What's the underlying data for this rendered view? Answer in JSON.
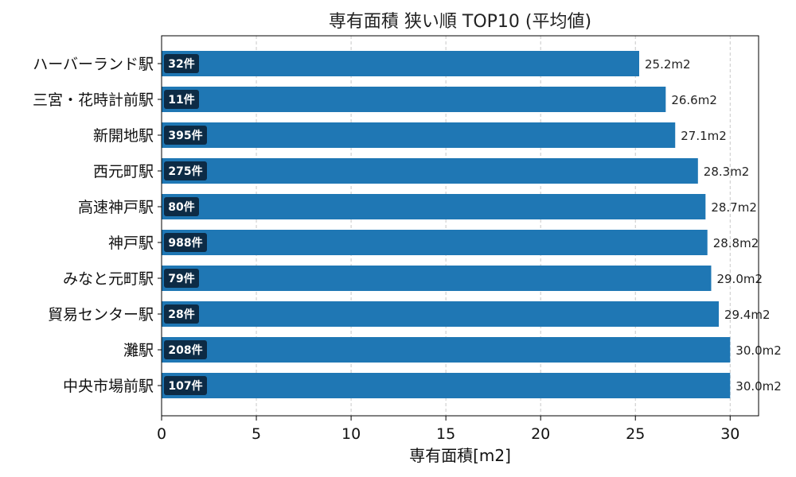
{
  "chart_data": {
    "type": "bar",
    "orientation": "horizontal",
    "title": "専有面積 狭い順 TOP10 (平均値)",
    "xlabel": "専有面積[m2]",
    "ylabel": "",
    "xlim": [
      0,
      31.5
    ],
    "xticks": [
      0,
      5,
      10,
      15,
      20,
      25,
      30
    ],
    "grid": "x-dashed",
    "bar_color": "#1f77b4",
    "badge_color": "#0d2b45",
    "value_unit": "m2",
    "categories": [
      "ハーバーランド駅",
      "三宮・花時計前駅",
      "新開地駅",
      "西元町駅",
      "高速神戸駅",
      "神戸駅",
      "みなと元町駅",
      "貿易センター駅",
      "灘駅",
      "中央市場前駅"
    ],
    "values": [
      25.2,
      26.6,
      27.1,
      28.3,
      28.7,
      28.8,
      29.0,
      29.4,
      30.0,
      30.0
    ],
    "value_labels": [
      "25.2m2",
      "26.6m2",
      "27.1m2",
      "28.3m2",
      "28.7m2",
      "28.8m2",
      "29.0m2",
      "29.4m2",
      "30.0m2",
      "30.0m2"
    ],
    "counts": [
      "32件",
      "11件",
      "395件",
      "275件",
      "80件",
      "988件",
      "79件",
      "28件",
      "208件",
      "107件"
    ]
  }
}
